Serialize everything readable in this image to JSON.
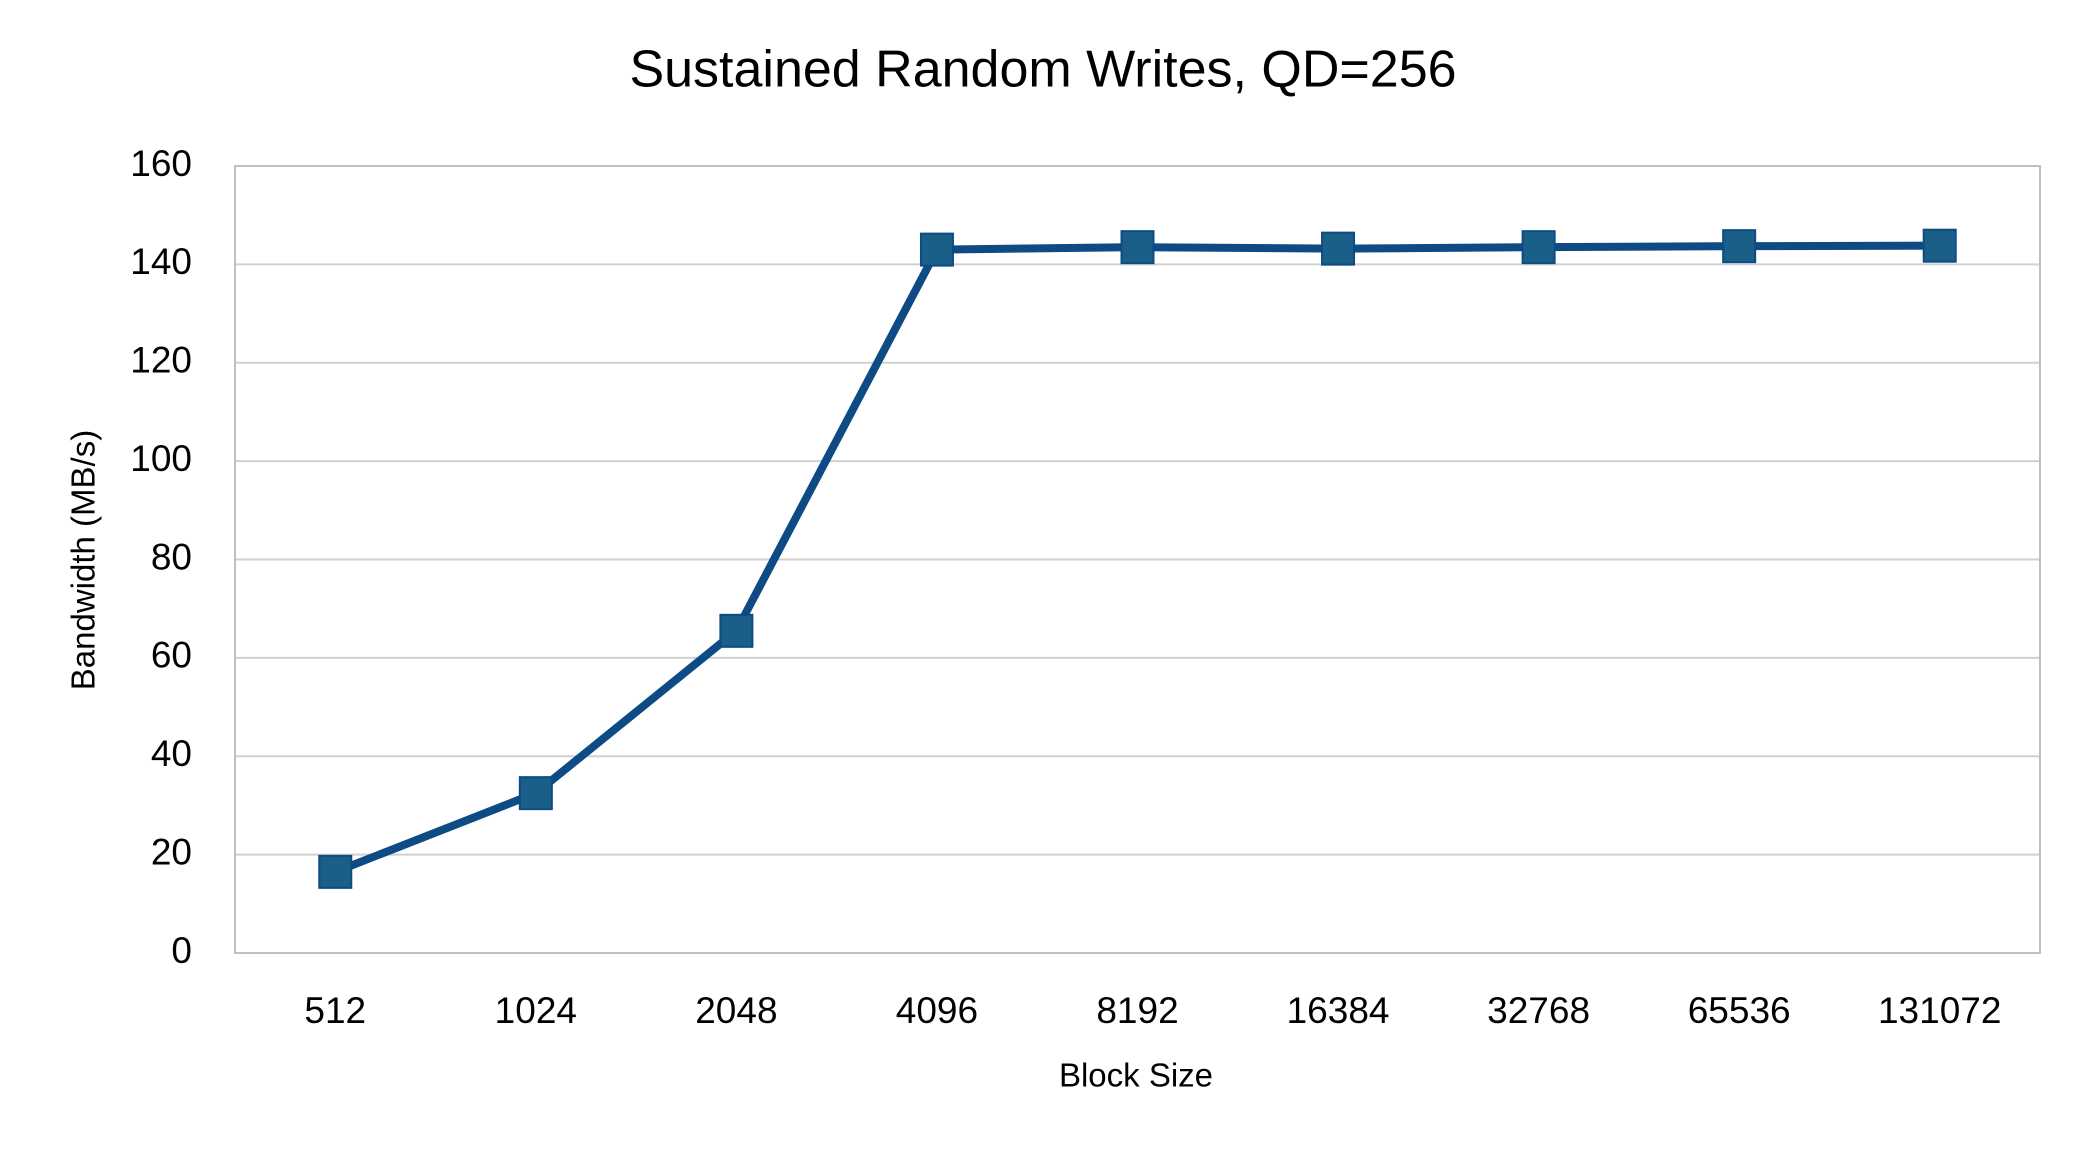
{
  "chart_data": {
    "type": "line",
    "title": "Sustained Random Writes, QD=256",
    "x_label": "Block Size",
    "y_label": "Bandwidth (MB/s)",
    "categories": [
      "512",
      "1024",
      "2048",
      "4096",
      "8192",
      "16384",
      "32768",
      "65536",
      "131072"
    ],
    "series": [
      {
        "name": "Bandwidth",
        "color": "#0e4b84",
        "marker_color": "#1a5f87",
        "values": [
          16.5,
          32.5,
          65.5,
          143,
          143.5,
          143.2,
          143.5,
          143.7,
          143.8
        ]
      }
    ],
    "ylim": [
      0,
      160
    ],
    "yticks": [
      0,
      20,
      40,
      60,
      80,
      100,
      120,
      140,
      160
    ],
    "grid": true
  }
}
